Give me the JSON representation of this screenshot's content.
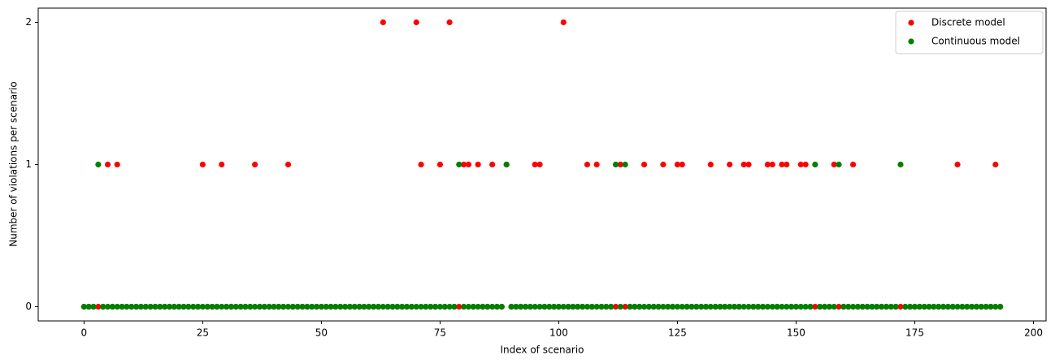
{
  "chart_data": {
    "type": "scatter",
    "x_label": "Index of scenario",
    "y_label": "Number of violations per scenario",
    "x": [
      0,
      1,
      2,
      3,
      4,
      5,
      6,
      7,
      8,
      9,
      10,
      11,
      12,
      13,
      14,
      15,
      16,
      17,
      18,
      19,
      20,
      21,
      22,
      23,
      24,
      25,
      26,
      27,
      28,
      29,
      30,
      31,
      32,
      33,
      34,
      35,
      36,
      37,
      38,
      39,
      40,
      41,
      42,
      43,
      44,
      45,
      46,
      47,
      48,
      49,
      50,
      51,
      52,
      53,
      54,
      55,
      56,
      57,
      58,
      59,
      60,
      61,
      62,
      63,
      64,
      65,
      66,
      67,
      68,
      69,
      70,
      71,
      72,
      73,
      74,
      75,
      76,
      77,
      78,
      79,
      80,
      81,
      82,
      83,
      84,
      85,
      86,
      87,
      88,
      89,
      90,
      91,
      92,
      93,
      94,
      95,
      96,
      97,
      98,
      99,
      100,
      101,
      102,
      103,
      104,
      105,
      106,
      107,
      108,
      109,
      110,
      111,
      112,
      113,
      114,
      115,
      116,
      117,
      118,
      119,
      120,
      121,
      122,
      123,
      124,
      125,
      126,
      127,
      128,
      129,
      130,
      131,
      132,
      133,
      134,
      135,
      136,
      137,
      138,
      139,
      140,
      141,
      142,
      143,
      144,
      145,
      146,
      147,
      148,
      149,
      150,
      151,
      152,
      153,
      154,
      155,
      156,
      157,
      158,
      159,
      160,
      161,
      162,
      163,
      164,
      165,
      166,
      167,
      168,
      169,
      170,
      171,
      172,
      173,
      174,
      175,
      176,
      177,
      178,
      179,
      180,
      181,
      182,
      183,
      184,
      185,
      186,
      187,
      188,
      189,
      190,
      191,
      192,
      193
    ],
    "series": [
      {
        "name": "Discrete model",
        "color": "#ff0000",
        "values": [
          0,
          0,
          0,
          0,
          0,
          1,
          0,
          1,
          0,
          0,
          0,
          0,
          0,
          0,
          0,
          0,
          0,
          0,
          0,
          0,
          0,
          0,
          0,
          0,
          0,
          1,
          0,
          0,
          0,
          1,
          0,
          0,
          0,
          0,
          0,
          0,
          1,
          0,
          0,
          0,
          0,
          0,
          0,
          1,
          0,
          0,
          0,
          0,
          0,
          0,
          0,
          0,
          0,
          0,
          0,
          0,
          0,
          0,
          0,
          0,
          0,
          0,
          0,
          2,
          0,
          0,
          0,
          0,
          0,
          0,
          2,
          1,
          0,
          0,
          0,
          1,
          0,
          2,
          0,
          0,
          1,
          1,
          0,
          1,
          0,
          0,
          1,
          0,
          0,
          1,
          0,
          0,
          0,
          0,
          0,
          1,
          1,
          0,
          0,
          0,
          0,
          2,
          0,
          0,
          0,
          0,
          1,
          0,
          1,
          0,
          0,
          0,
          0,
          1,
          0,
          0,
          0,
          0,
          1,
          0,
          0,
          0,
          1,
          0,
          0,
          1,
          1,
          0,
          0,
          0,
          0,
          0,
          1,
          0,
          0,
          0,
          1,
          0,
          0,
          1,
          1,
          0,
          0,
          0,
          1,
          1,
          0,
          1,
          1,
          0,
          0,
          1,
          1,
          0,
          0,
          0,
          0,
          0,
          1,
          0,
          0,
          0,
          1,
          0,
          0,
          0,
          0,
          0,
          0,
          0,
          0,
          0,
          0,
          0,
          0,
          0,
          0,
          0,
          0,
          0,
          0,
          0,
          0,
          0,
          1,
          0,
          0,
          0,
          0,
          0,
          0,
          0,
          1,
          0
        ]
      },
      {
        "name": "Continuous model",
        "color": "#008000",
        "values": [
          0,
          0,
          0,
          1,
          0,
          0,
          0,
          0,
          0,
          0,
          0,
          0,
          0,
          0,
          0,
          0,
          0,
          0,
          0,
          0,
          0,
          0,
          0,
          0,
          0,
          0,
          0,
          0,
          0,
          0,
          0,
          0,
          0,
          0,
          0,
          0,
          0,
          0,
          0,
          0,
          0,
          0,
          0,
          0,
          0,
          0,
          0,
          0,
          0,
          0,
          0,
          0,
          0,
          0,
          0,
          0,
          0,
          0,
          0,
          0,
          0,
          0,
          0,
          0,
          0,
          0,
          0,
          0,
          0,
          0,
          0,
          0,
          0,
          0,
          0,
          0,
          0,
          0,
          0,
          1,
          0,
          0,
          0,
          0,
          0,
          0,
          0,
          0,
          0,
          1,
          0,
          0,
          0,
          0,
          0,
          0,
          0,
          0,
          0,
          0,
          0,
          0,
          0,
          0,
          0,
          0,
          0,
          0,
          0,
          0,
          0,
          0,
          1,
          0,
          1,
          0,
          0,
          0,
          0,
          0,
          0,
          0,
          0,
          0,
          0,
          0,
          0,
          0,
          0,
          0,
          0,
          0,
          0,
          0,
          0,
          0,
          0,
          0,
          0,
          0,
          0,
          0,
          0,
          0,
          0,
          0,
          0,
          0,
          0,
          0,
          0,
          0,
          0,
          0,
          1,
          0,
          0,
          0,
          0,
          1,
          0,
          0,
          0,
          0,
          0,
          0,
          0,
          0,
          0,
          0,
          0,
          0,
          1,
          0,
          0,
          0,
          0,
          0,
          0,
          0,
          0,
          0,
          0,
          0,
          0,
          0,
          0,
          0,
          0,
          0,
          0,
          0,
          0,
          0
        ]
      }
    ],
    "xlim": [
      -9.65,
      202.65
    ],
    "ylim": [
      -0.1,
      2.1
    ],
    "xticks": [
      0,
      25,
      50,
      75,
      100,
      125,
      150,
      175,
      200
    ],
    "yticks": [
      0,
      1,
      2
    ],
    "legend": "upper right"
  }
}
